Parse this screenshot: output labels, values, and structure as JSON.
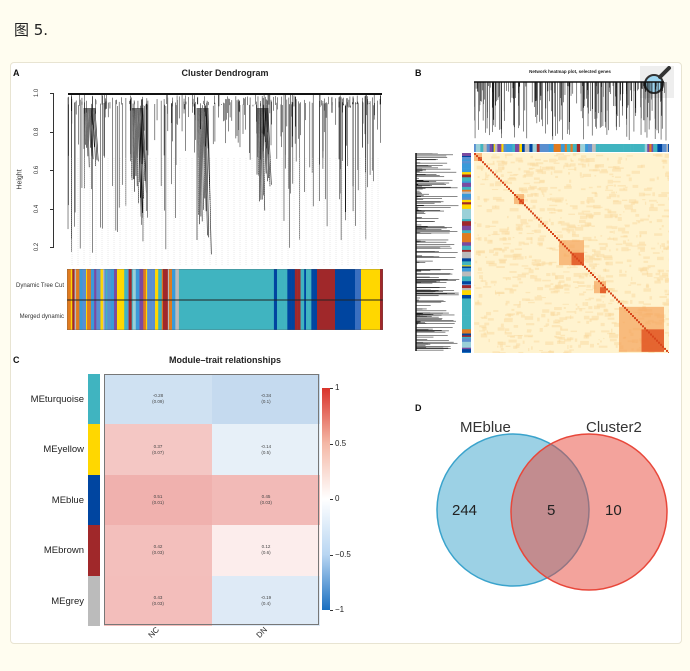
{
  "figure_label": "图 5.",
  "panelA": {
    "label": "A",
    "title": "Cluster Dendrogram",
    "ylabel": "Height",
    "yticks": [
      "1.0",
      "0.8",
      "0.6",
      "0.4",
      "0.2"
    ],
    "bar_labels": [
      "Dynamic Tree Cut",
      "Merged dynamic"
    ],
    "module_colors": {
      "turquoise": "#40b4c0",
      "blue": "#0045a0",
      "brown": "#a0282a",
      "yellow": "#ffd700",
      "grey": "#bbbbbb"
    }
  },
  "panelB": {
    "label": "B",
    "title": "Network heatmap plot, selected genes",
    "zoom_icon": "magnifier-icon"
  },
  "panelC": {
    "label": "C",
    "title": "Module–trait relationships",
    "columns": [
      "NC",
      "DN"
    ],
    "rows": [
      {
        "module": "MEturquoise",
        "color": "#40b4c0",
        "cells": [
          {
            "r": "-0.28",
            "p": "(0.09)"
          },
          {
            "r": "-0.34",
            "p": "(0.1)"
          }
        ]
      },
      {
        "module": "MEyellow",
        "color": "#ffd700",
        "cells": [
          {
            "r": "0.37",
            "p": "(0.07)"
          },
          {
            "r": "-0.14",
            "p": "(0.5)"
          }
        ]
      },
      {
        "module": "MEblue",
        "color": "#0045a0",
        "cells": [
          {
            "r": "0.51",
            "p": "(0.01)"
          },
          {
            "r": "0.45",
            "p": "(0.03)"
          }
        ]
      },
      {
        "module": "MEbrown",
        "color": "#a0282a",
        "cells": [
          {
            "r": "0.42",
            "p": "(0.03)"
          },
          {
            "r": "0.12",
            "p": "(0.6)"
          }
        ]
      },
      {
        "module": "MEgrey",
        "color": "#bbbbbb",
        "cells": [
          {
            "r": "0.43",
            "p": "(0.03)"
          },
          {
            "r": "-0.19",
            "p": "(0.4)"
          }
        ]
      }
    ],
    "colorbar_ticks": [
      "1",
      "0.5",
      "0",
      "−0.5",
      "−1"
    ],
    "scale": {
      "min": -1,
      "max": 1,
      "low": "#1a6fc0",
      "mid": "#ffffff",
      "high": "#d9342b"
    }
  },
  "panelD": {
    "label": "D",
    "sets": [
      {
        "name": "MEblue",
        "color": "#3aa3cc"
      },
      {
        "name": "Cluster2",
        "color": "#e8473a"
      }
    ],
    "only_left": "244",
    "overlap": "5",
    "only_right": "10"
  }
}
